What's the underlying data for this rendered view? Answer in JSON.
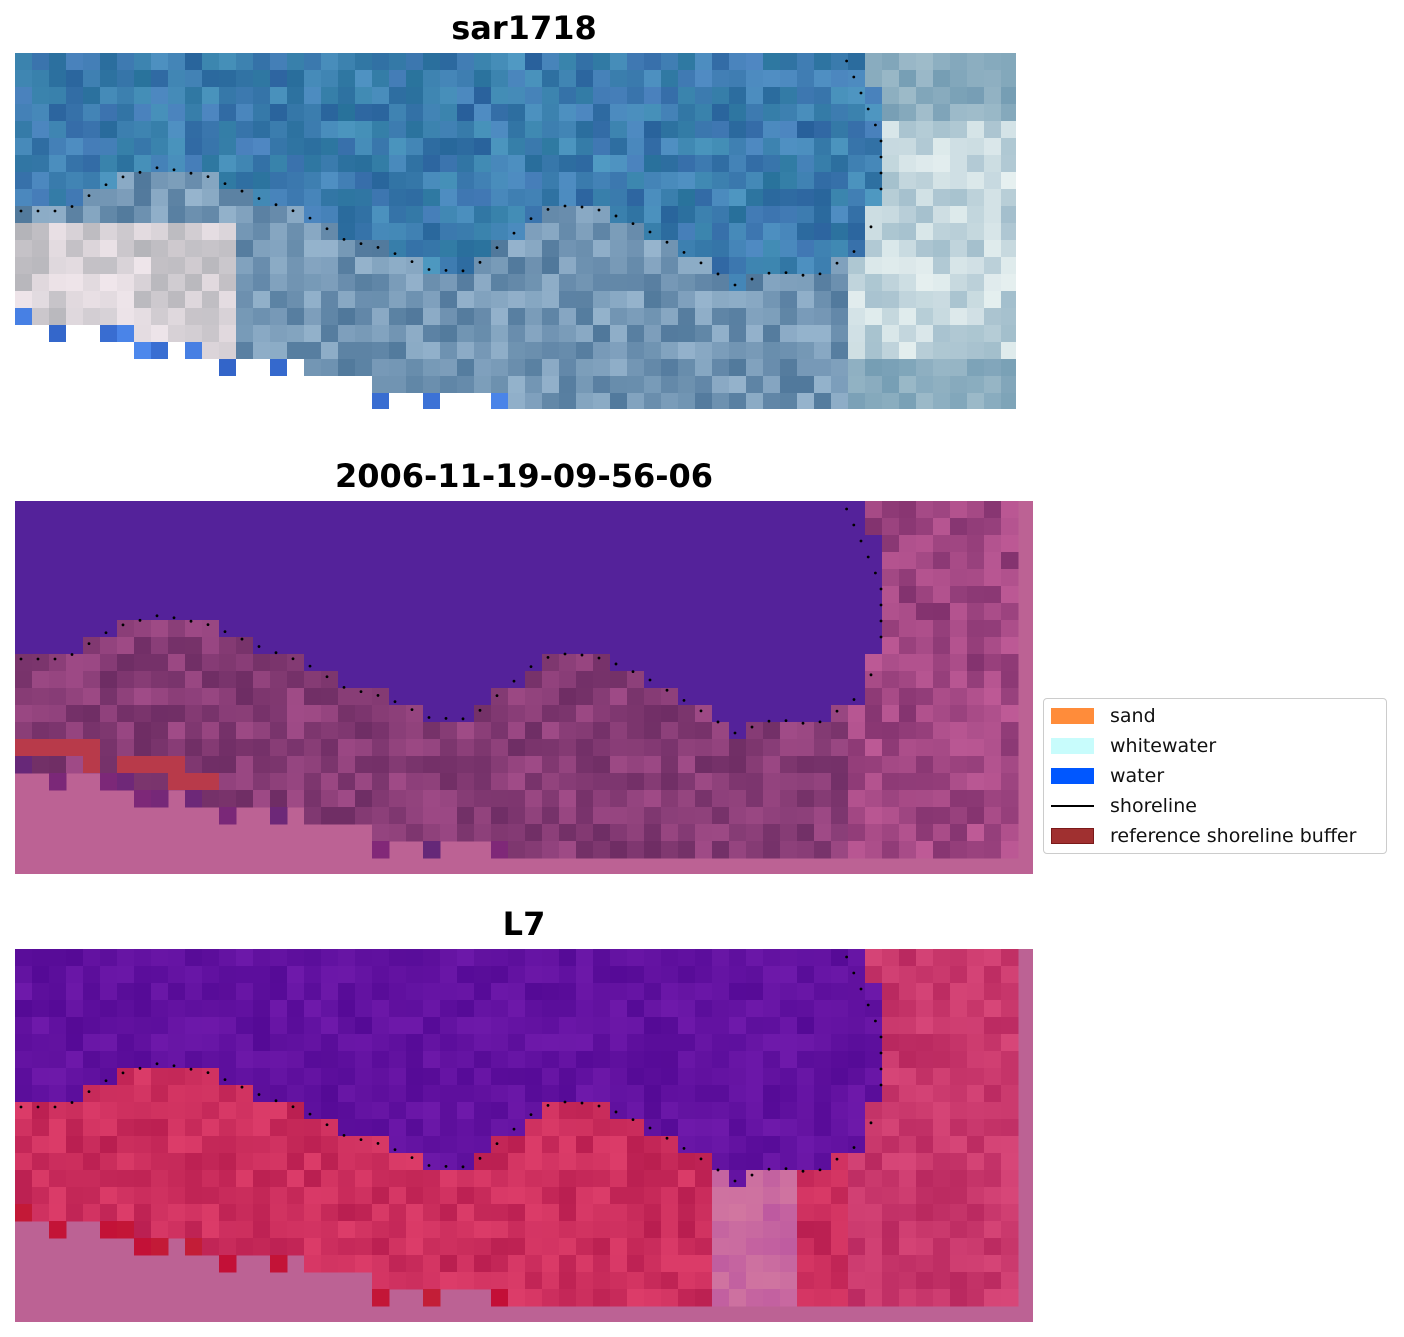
{
  "panels": [
    {
      "id": "rgb",
      "title": "sar1718",
      "style": "rgb"
    },
    {
      "id": "classified",
      "title": "2006-11-19-09-56-06",
      "style": "classified"
    },
    {
      "id": "index",
      "title": "L7",
      "style": "index"
    }
  ],
  "legend": {
    "items": [
      {
        "label": "sand",
        "kind": "patch",
        "color": "#ff8c3a"
      },
      {
        "label": "whitewater",
        "kind": "patch",
        "color": "#c8fcfc"
      },
      {
        "label": "water",
        "kind": "patch",
        "color": "#0057ff"
      },
      {
        "label": "shoreline",
        "kind": "line",
        "color": "#000000"
      },
      {
        "label": "reference shoreline buffer",
        "kind": "patch",
        "color": "#a03030",
        "edge": "#7a1a1a"
      }
    ]
  },
  "colors": {
    "nodata_pink": "#bc6294",
    "water_purple": "#54229a",
    "land_magenta": "#7a3a78",
    "buffer_red": "#b83a4a",
    "index_purple": "#5a10a0",
    "index_red": "#c22050",
    "rgb_deep_blue": "#2f64a8",
    "rgb_light": "#b8d8e8"
  }
}
